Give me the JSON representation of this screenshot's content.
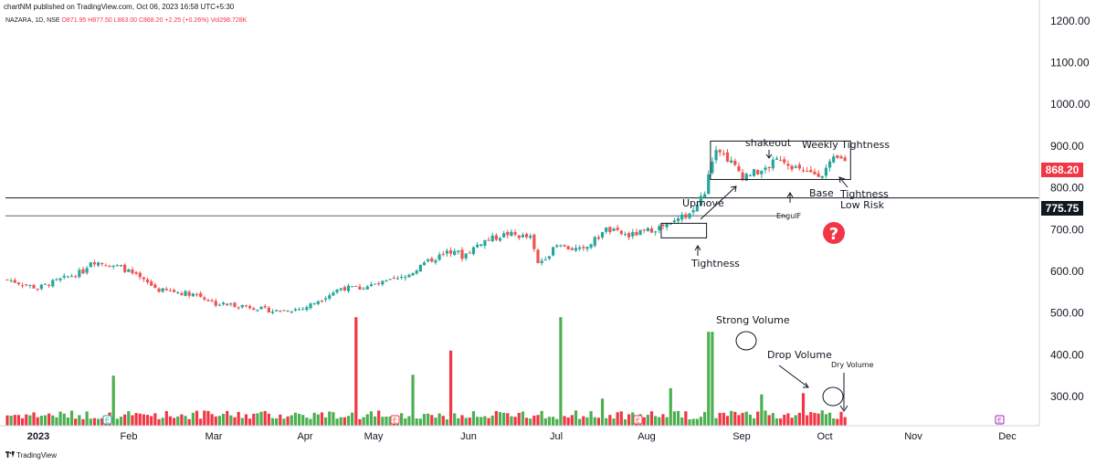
{
  "header": {
    "published_note": "chartNM published on TradingView.com, Oct 06, 2023 16:58 UTC+5:30",
    "symbol": "NAZARA, 1D, NSE",
    "open": "O871.95",
    "high": "H877.50",
    "low": "L863.00",
    "close": "C868.20",
    "change": "+2.25 (+0.26%)",
    "volume": "Vol298.728K"
  },
  "footer": {
    "brand": "TradingView"
  },
  "colors": {
    "up": "#26a69a",
    "down": "#ef5350",
    "vol_up": "#4caf50",
    "vol_down": "#f23645",
    "badge": "#f23645",
    "earnings_badge": "#9c27b0",
    "question": "#f23645"
  },
  "price_badges": {
    "last": "868.20",
    "level": "775.75"
  },
  "annotations": {
    "shakeout": "shakeout",
    "weekly_tightness": "Weekly Tightness",
    "upmove": "Upmove",
    "base": "Base",
    "tightness_low_risk_1": "Tightness",
    "tightness_low_risk_2": "Low  Risk",
    "engulf": "EngulF",
    "tightness": "Tightness",
    "strong_volume": "Strong Volume",
    "drop_volume": "Drop Volume",
    "dry_volume": "Dry Volume",
    "question": "?"
  },
  "earnings_marker": "E",
  "chart_data": {
    "type": "candlestick",
    "symbol": "NAZARA",
    "timeframe": "1D",
    "exchange": "NSE",
    "y_axis": {
      "min": 230,
      "max": 1250,
      "ticks": [
        1200,
        1100,
        1000,
        900,
        800,
        700,
        600,
        500,
        400,
        300
      ],
      "tick_labels": [
        "1200.00",
        "1100.00",
        "1000.00",
        "900.00",
        "800.00",
        "700.00",
        "600.00",
        "500.00",
        "400.00",
        "300.00"
      ]
    },
    "x_axis": {
      "labels": [
        "2023",
        "Feb",
        "Mar",
        "Apr",
        "May",
        "Jun",
        "Jul",
        "Aug",
        "Sep",
        "Oct",
        "Nov",
        "Dec"
      ]
    },
    "horizontal_levels": [
      775.75,
      733
    ],
    "last_price": 868.2,
    "price_path": [
      [
        0,
        580
      ],
      [
        8,
        560
      ],
      [
        20,
        600
      ],
      [
        22,
        625
      ],
      [
        30,
        610
      ],
      [
        40,
        555
      ],
      [
        50,
        545
      ],
      [
        55,
        522
      ],
      [
        62,
        518
      ],
      [
        70,
        505
      ],
      [
        78,
        510
      ],
      [
        82,
        530
      ],
      [
        88,
        560
      ],
      [
        93,
        560
      ],
      [
        98,
        570
      ],
      [
        105,
        585
      ],
      [
        110,
        620
      ],
      [
        115,
        640
      ],
      [
        118,
        652
      ],
      [
        120,
        635
      ],
      [
        125,
        670
      ],
      [
        132,
        690
      ],
      [
        138,
        680
      ],
      [
        140,
        618
      ],
      [
        145,
        660
      ],
      [
        152,
        650
      ],
      [
        158,
        700
      ],
      [
        164,
        685
      ],
      [
        170,
        700
      ],
      [
        175,
        712
      ],
      [
        181,
        745
      ],
      [
        184,
        790
      ],
      [
        187,
        900
      ],
      [
        190,
        870
      ],
      [
        194,
        830
      ],
      [
        199,
        840
      ],
      [
        204,
        872
      ],
      [
        210,
        835
      ],
      [
        215,
        835
      ],
      [
        218,
        866
      ],
      [
        219,
        868.2
      ]
    ],
    "volume_axis_baseline": 230,
    "volume_spikes_price_scale": [
      [
        28,
        350
      ],
      [
        92,
        490
      ],
      [
        107,
        352
      ],
      [
        117,
        410
      ],
      [
        146,
        490
      ],
      [
        185,
        455
      ],
      [
        186,
        455
      ],
      [
        175,
        320
      ],
      [
        157,
        295
      ],
      [
        199,
        305
      ],
      [
        210,
        308
      ]
    ],
    "boxes": [
      {
        "name": "tightness-box",
        "day_start": 173,
        "day_end": 184,
        "low": 680,
        "high": 715
      },
      {
        "name": "weekly-tightness-box",
        "day_start": 186,
        "day_end": 222,
        "low": 820,
        "high": 912
      }
    ]
  }
}
